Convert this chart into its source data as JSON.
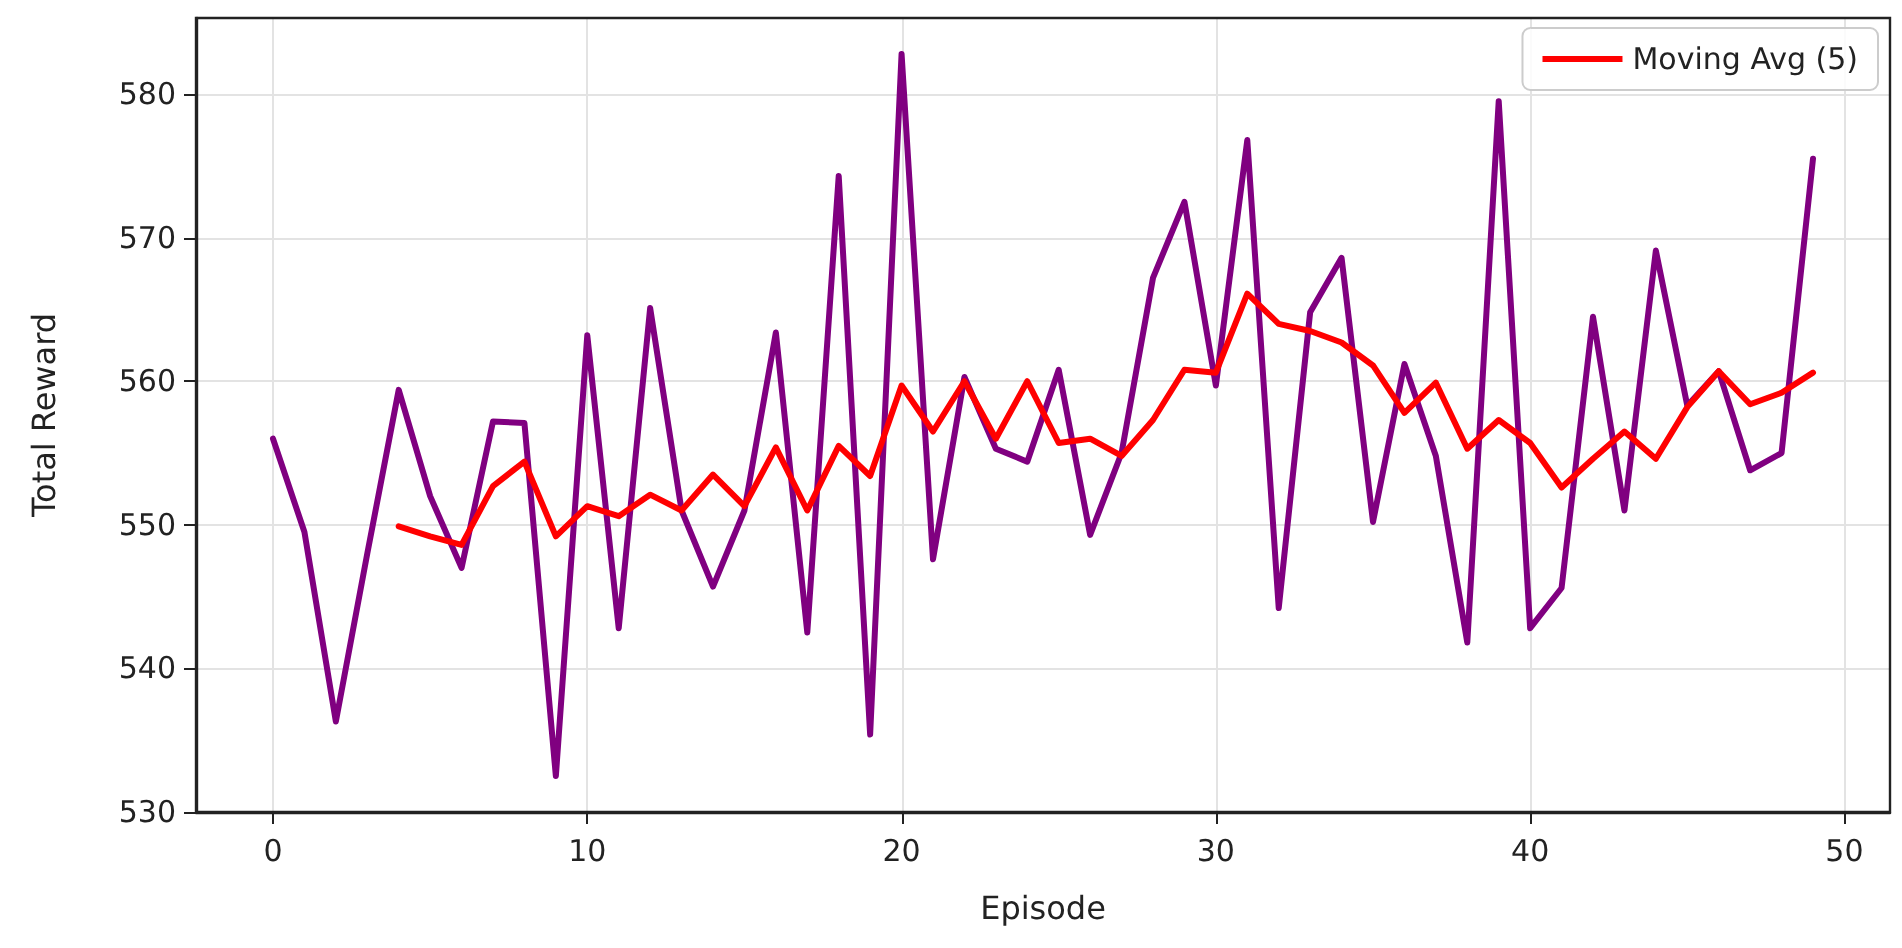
{
  "chart_data": {
    "type": "line",
    "xlabel": "Episode",
    "ylabel": "Total Reward",
    "x": [
      0,
      1,
      2,
      3,
      4,
      5,
      6,
      7,
      8,
      9,
      10,
      11,
      12,
      13,
      14,
      15,
      16,
      17,
      18,
      19,
      20,
      21,
      22,
      23,
      24,
      25,
      26,
      27,
      28,
      29,
      30,
      31,
      32,
      33,
      34,
      35,
      36,
      37,
      38,
      39,
      40,
      41,
      42,
      43,
      44,
      45,
      46,
      47,
      48,
      49
    ],
    "series": [
      {
        "color": "#800080",
        "values": [
          556,
          549.5,
          536.3,
          548,
          559.4,
          552,
          547,
          557.2,
          557.1,
          532.5,
          563.2,
          542.8,
          565.1,
          551,
          545.7,
          551,
          563.4,
          542.5,
          574.3,
          535.4,
          582.8,
          547.6,
          560.3,
          555.3,
          554.4,
          560.8,
          549.3,
          555,
          567.2,
          572.5,
          559.7,
          576.8,
          544.2,
          564.8,
          568.6,
          550.2,
          561.2,
          554.8,
          541.8,
          579.5,
          542.8,
          545.6,
          564.5,
          551,
          569.1,
          558.3,
          560.7,
          553.8,
          555,
          575.5
        ]
      },
      {
        "name": "Moving Avg (5)",
        "color": "#ff0000",
        "x": [
          4,
          5,
          6,
          7,
          8,
          9,
          10,
          11,
          12,
          13,
          14,
          15,
          16,
          17,
          18,
          19,
          20,
          21,
          22,
          23,
          24,
          25,
          26,
          27,
          28,
          29,
          30,
          31,
          32,
          33,
          34,
          35,
          36,
          37,
          38,
          39,
          40,
          41,
          42,
          43,
          44,
          45,
          46,
          47,
          48,
          49
        ],
        "values": [
          549.9,
          549.2,
          548.6,
          552.7,
          554.4,
          549.2,
          551.3,
          550.6,
          552.1,
          551,
          553.5,
          551.3,
          555.4,
          551,
          555.5,
          553.4,
          559.7,
          556.5,
          560,
          556,
          560,
          555.7,
          556,
          554.8,
          557.3,
          560.8,
          560.6,
          566.1,
          564,
          563.5,
          562.7,
          561.1,
          557.8,
          559.9,
          555.3,
          557.3,
          555.7,
          552.6,
          554.6,
          556.5,
          554.6,
          558.2,
          560.7,
          558.4,
          559.2,
          560.6
        ]
      }
    ],
    "xlim": [
      -2.45,
      51.45
    ],
    "ylim": [
      530,
      585.3
    ],
    "xticks": [
      0,
      10,
      20,
      30,
      40,
      50
    ],
    "yticks": [
      530,
      540,
      550,
      560,
      570,
      580
    ],
    "grid": true,
    "legend": "top right",
    "marker": "none",
    "line_style": "solid"
  }
}
